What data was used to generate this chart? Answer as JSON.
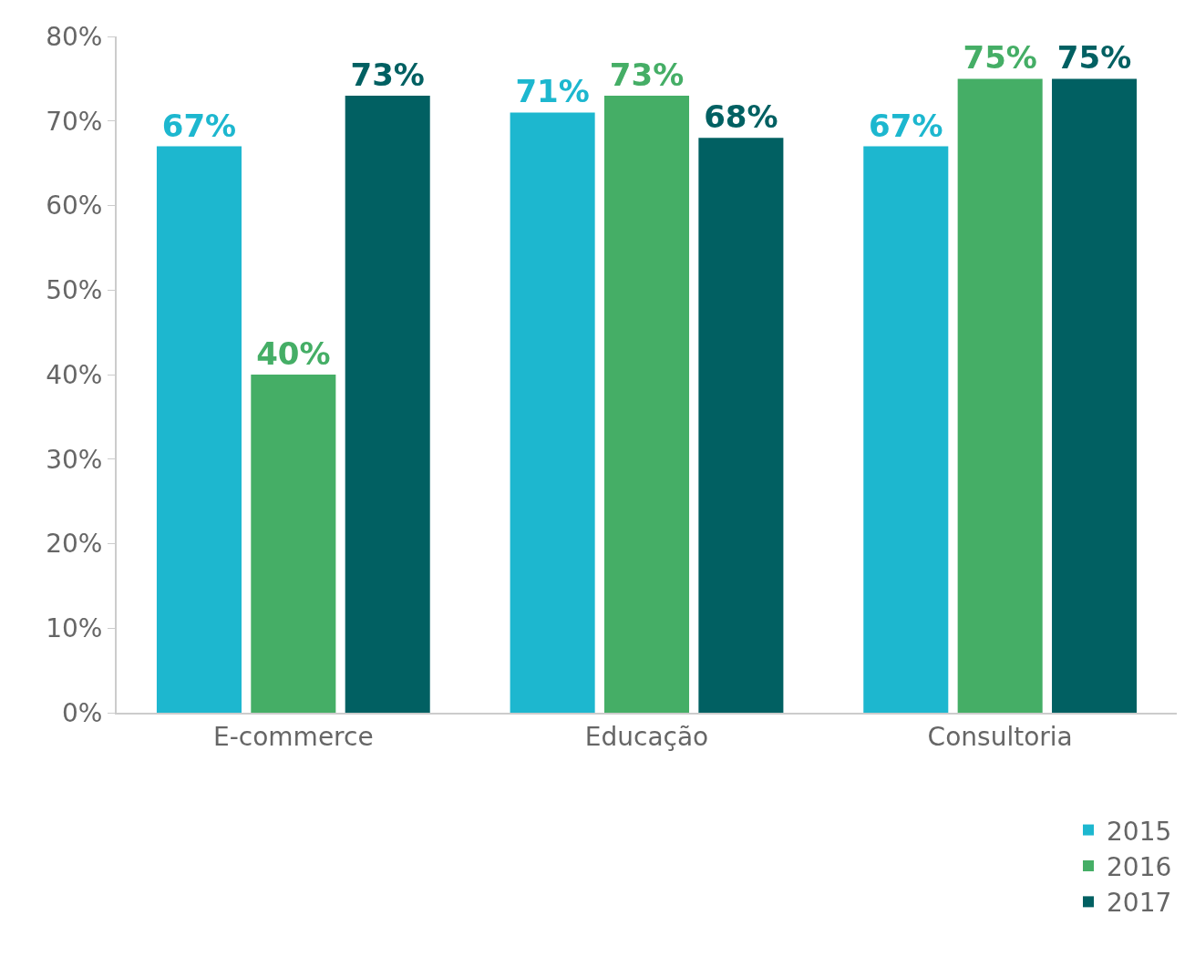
{
  "chart_data": {
    "type": "bar",
    "categories": [
      "E-commerce",
      "Educação",
      "Consultoria"
    ],
    "series": [
      {
        "name": "2015",
        "color": "#1db7cf",
        "values": [
          67,
          71,
          67
        ],
        "value_labels": [
          "67%",
          "71%",
          "67%"
        ]
      },
      {
        "name": "2016",
        "color": "#45ae66",
        "values": [
          40,
          73,
          75
        ],
        "value_labels": [
          "40%",
          "73%",
          "75%"
        ]
      },
      {
        "name": "2017",
        "color": "#016062",
        "values": [
          73,
          68,
          75
        ],
        "value_labels": [
          "73%",
          "68%",
          "75%"
        ]
      }
    ],
    "ylim": [
      0,
      80
    ],
    "yticks": [
      {
        "value": 0,
        "label": "0%"
      },
      {
        "value": 10,
        "label": "10%"
      },
      {
        "value": 20,
        "label": "20%"
      },
      {
        "value": 30,
        "label": "30%"
      },
      {
        "value": 40,
        "label": "40%"
      },
      {
        "value": 50,
        "label": "50%"
      },
      {
        "value": 60,
        "label": "60%"
      },
      {
        "value": 70,
        "label": "70%"
      },
      {
        "value": 80,
        "label": "80%"
      }
    ],
    "grid": false,
    "legend": "bottom right"
  }
}
